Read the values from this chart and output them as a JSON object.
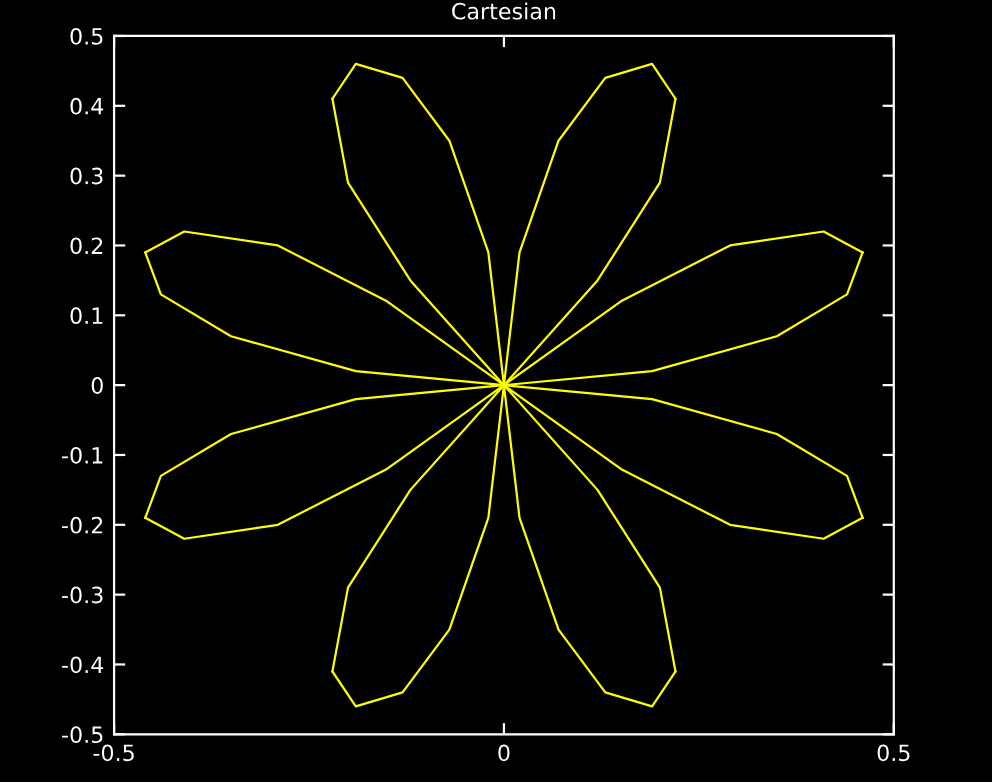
{
  "chart_data": {
    "type": "line",
    "title": "Cartesian",
    "series": [
      {
        "color": "#ffff00",
        "x": [
          -0.46,
          -0.44,
          -0.35,
          -0.19,
          0,
          0.19,
          0.35,
          0.44,
          0.46
        ],
        "values": [
          0.19,
          0.13,
          0.07,
          0.02,
          0,
          0.02,
          0.07,
          0.13,
          0.19
        ]
      },
      {
        "color": "#ffff00",
        "x": [
          -0.46,
          -0.41,
          -0.29,
          -0.15,
          0,
          0.15,
          0.29,
          0.41,
          0.46
        ],
        "values": [
          0.19,
          0.22,
          0.2,
          0.12,
          0,
          0.12,
          0.2,
          0.22,
          0.19
        ]
      },
      {
        "color": "#ffff00",
        "x": [
          -0.22,
          -0.19,
          -0.13,
          -0.07,
          -0.02,
          0,
          0.02,
          0.07,
          0.13,
          0.19,
          0.22
        ],
        "values": [
          0.41,
          0.46,
          0.44,
          0.35,
          0.19,
          0,
          0.19,
          0.35,
          0.44,
          0.46,
          0.41
        ]
      },
      {
        "color": "#ffff00",
        "x": [
          -0.22,
          -0.2,
          -0.12,
          0,
          0.12,
          0.2,
          0.22
        ],
        "values": [
          0.41,
          0.29,
          0.15,
          0,
          0.15,
          0.29,
          0.41
        ]
      },
      {
        "color": "#ffff00",
        "x": [
          -0.46,
          -0.44,
          -0.35,
          -0.19,
          0,
          0.19,
          0.35,
          0.44,
          0.46
        ],
        "values": [
          -0.19,
          -0.13,
          -0.07,
          -0.02,
          0,
          -0.02,
          -0.07,
          -0.13,
          -0.19
        ]
      },
      {
        "color": "#ffff00",
        "x": [
          -0.46,
          -0.41,
          -0.29,
          -0.15,
          0,
          0.15,
          0.29,
          0.41,
          0.46
        ],
        "values": [
          -0.19,
          -0.22,
          -0.2,
          -0.12,
          0,
          -0.12,
          -0.2,
          -0.22,
          -0.19
        ]
      },
      {
        "color": "#ffff00",
        "x": [
          -0.22,
          -0.19,
          -0.13,
          -0.07,
          -0.02,
          0,
          0.02,
          0.07,
          0.13,
          0.19,
          0.22
        ],
        "values": [
          -0.41,
          -0.46,
          -0.44,
          -0.35,
          -0.19,
          0,
          -0.19,
          -0.35,
          -0.44,
          -0.46,
          -0.41
        ]
      },
      {
        "color": "#ffff00",
        "x": [
          -0.22,
          -0.2,
          -0.12,
          0,
          0.12,
          0.2,
          0.22
        ],
        "values": [
          -0.41,
          -0.29,
          -0.15,
          0,
          -0.15,
          -0.29,
          -0.41
        ]
      }
    ],
    "xlim": [
      -0.5,
      0.5
    ],
    "xticks": [
      -0.5,
      0,
      0.5
    ],
    "ylim": [
      -0.5,
      0.5
    ],
    "yticks": [
      -0.5,
      -0.4,
      -0.3,
      -0.2,
      -0.1,
      0,
      0.1,
      0.2,
      0.3,
      0.4,
      0.5
    ],
    "grid": false,
    "marker": "none",
    "line_style": "solid"
  }
}
